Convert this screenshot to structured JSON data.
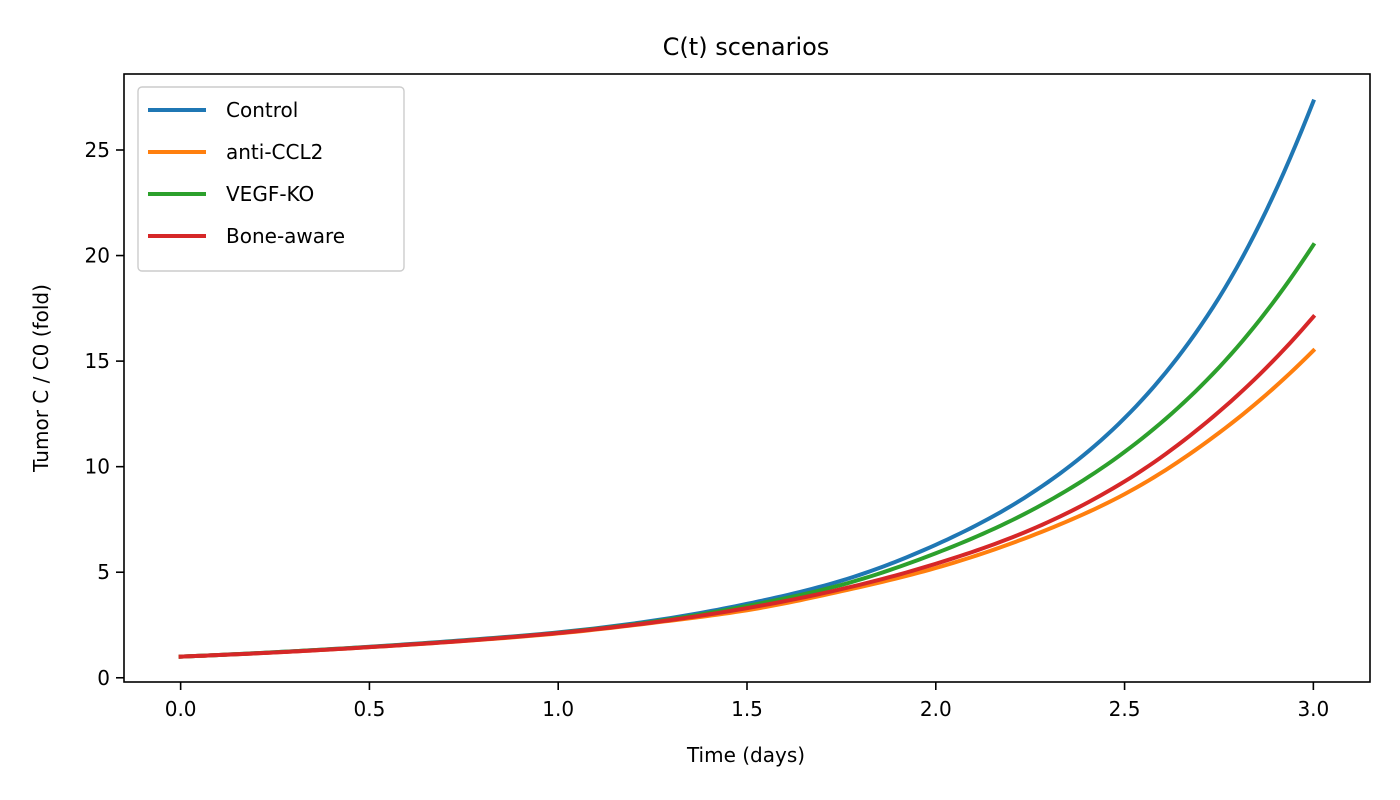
{
  "chart_data": {
    "type": "line",
    "title": "C(t) scenarios",
    "xlabel": "Time (days)",
    "ylabel": "Tumor C / C0 (fold)",
    "xlim": [
      -0.15,
      3.15
    ],
    "ylim": [
      -0.2,
      28.6
    ],
    "xticks": [
      0.0,
      0.5,
      1.0,
      1.5,
      2.0,
      2.5,
      3.0
    ],
    "xtick_labels": [
      "0.0",
      "0.5",
      "1.0",
      "1.5",
      "2.0",
      "2.5",
      "3.0"
    ],
    "yticks": [
      0,
      5,
      10,
      15,
      20,
      25
    ],
    "ytick_labels": [
      "0",
      "5",
      "10",
      "15",
      "20",
      "25"
    ],
    "grid": false,
    "legend_position": "top-left",
    "series": [
      {
        "name": "Control",
        "color": "#1f77b4",
        "x": [
          0.0,
          0.25,
          0.5,
          0.75,
          1.0,
          1.25,
          1.5,
          1.75,
          2.0,
          2.25,
          2.5,
          2.75,
          3.0
        ],
        "y": [
          1.0,
          1.21,
          1.47,
          1.78,
          2.15,
          2.7,
          3.5,
          4.6,
          6.3,
          8.7,
          12.3,
          18.0,
          27.3
        ]
      },
      {
        "name": "anti-CCL2",
        "color": "#ff7f0e",
        "x": [
          0.0,
          0.25,
          0.5,
          0.75,
          1.0,
          1.25,
          1.5,
          1.75,
          2.0,
          2.25,
          2.5,
          2.75,
          3.0
        ],
        "y": [
          1.0,
          1.2,
          1.45,
          1.74,
          2.1,
          2.6,
          3.2,
          4.1,
          5.2,
          6.7,
          8.7,
          11.6,
          15.5
        ]
      },
      {
        "name": "VEGF-KO",
        "color": "#2ca02c",
        "x": [
          0.0,
          0.25,
          0.5,
          0.75,
          1.0,
          1.25,
          1.5,
          1.75,
          2.0,
          2.25,
          2.5,
          2.75,
          3.0
        ],
        "y": [
          1.0,
          1.21,
          1.46,
          1.76,
          2.13,
          2.65,
          3.4,
          4.4,
          5.9,
          7.9,
          10.7,
          14.7,
          20.5
        ]
      },
      {
        "name": "Bone-aware",
        "color": "#d62728",
        "x": [
          0.0,
          0.25,
          0.5,
          0.75,
          1.0,
          1.25,
          1.5,
          1.75,
          2.0,
          2.25,
          2.5,
          2.75,
          3.0
        ],
        "y": [
          1.0,
          1.2,
          1.45,
          1.75,
          2.12,
          2.62,
          3.3,
          4.2,
          5.4,
          7.0,
          9.3,
          12.6,
          17.1
        ]
      }
    ]
  }
}
